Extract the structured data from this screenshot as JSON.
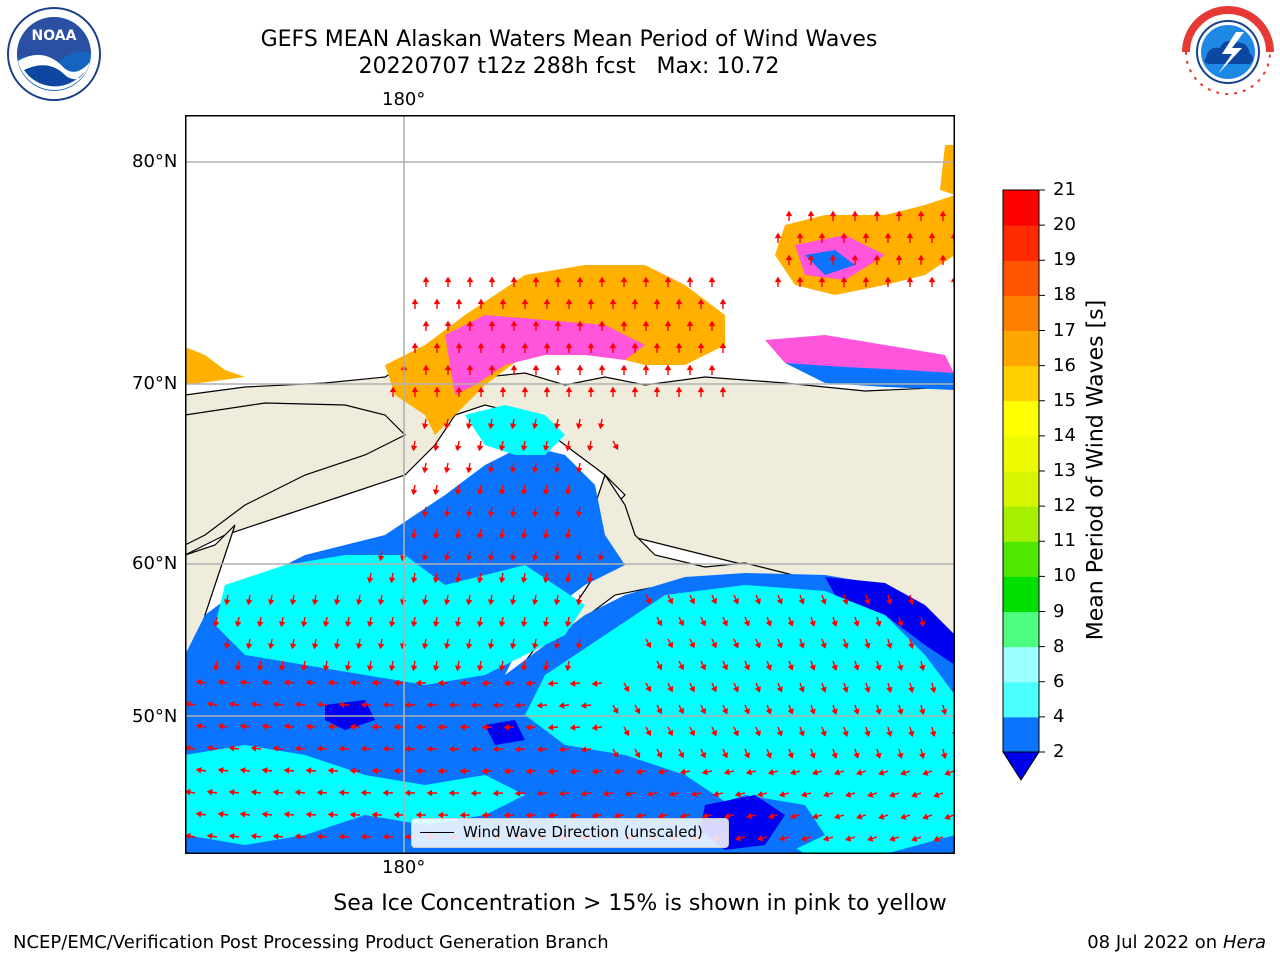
{
  "title": {
    "line1": "GEFS MEAN Alaskan Waters Mean Period of Wind Waves",
    "line2": "20220707 t12z 288h fcst   Max: 10.72"
  },
  "logos": {
    "left": {
      "name": "noaa-logo",
      "text": "NOAA"
    },
    "right": {
      "name": "nws-logo",
      "text": "NATIONAL WEATHER SERVICE"
    }
  },
  "map": {
    "top_lon_label": "180°",
    "bottom_lon_label": "180°",
    "lat_labels": [
      "80°N",
      "70°N",
      "60°N",
      "50°N"
    ],
    "land_color": "#efecdc",
    "gridline_color": "#b0b0b0",
    "vector_color": "#ff0000"
  },
  "legend": {
    "label": "Wind Wave Direction (unscaled)"
  },
  "colorbar": {
    "label": "Mean Period of Wind Waves [s]",
    "ticks": [
      "2",
      "4",
      "6",
      "8",
      "9",
      "10",
      "11",
      "12",
      "13",
      "14",
      "15",
      "16",
      "17",
      "18",
      "19",
      "20",
      "21"
    ],
    "colors": [
      "#0a74ff",
      "#00ffff",
      "#4cffff",
      "#9bffff",
      "#4dff7e",
      "#00e000",
      "#4fe600",
      "#a6ef00",
      "#d8f500",
      "#eefa00",
      "#ffff00",
      "#ffd000",
      "#ffa600",
      "#ff7f00",
      "#ff5500",
      "#ff2a00",
      "#ff0000"
    ],
    "extend_color": "#0000f0"
  },
  "caption": "Sea Ice Concentration > 15% is shown in pink to yellow",
  "footer": {
    "left": "NCEP/EMC/Verification Post Processing Product Generation Branch",
    "right_date": "08 Jul 2022 on ",
    "right_machine": "Hera"
  }
}
